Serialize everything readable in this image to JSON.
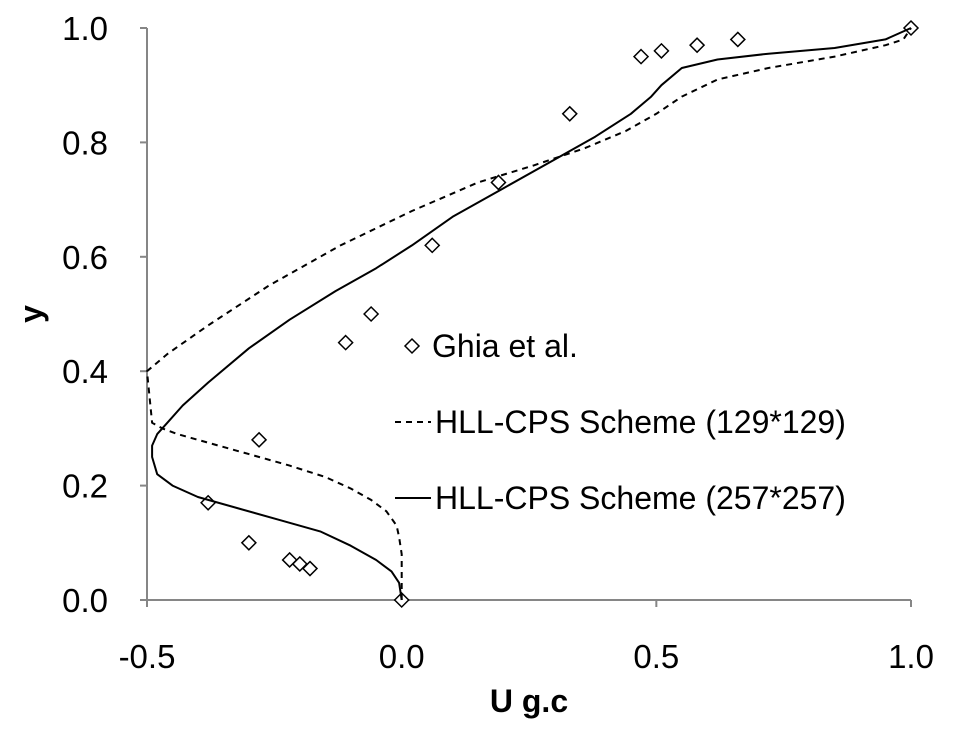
{
  "chart_data": {
    "type": "line",
    "xlabel": "U g.c",
    "ylabel": "y",
    "xlim": [
      -0.5,
      1.0
    ],
    "ylim": [
      0.0,
      1.0
    ],
    "x_ticks": [
      "-0.5",
      "0.0",
      "0.5",
      "1.0"
    ],
    "y_ticks": [
      "0.0",
      "0.2",
      "0.4",
      "0.6",
      "0.8",
      "1.0"
    ],
    "grid": false,
    "legend_position": "center-right",
    "series": [
      {
        "name": "Ghia et al.",
        "style": "markers",
        "marker": "open-diamond",
        "x": [
          0.0,
          -0.18,
          -0.2,
          -0.22,
          -0.3,
          -0.38,
          -0.28,
          -0.11,
          -0.06,
          0.06,
          0.19,
          0.33,
          0.47,
          0.51,
          0.58,
          0.66,
          1.0
        ],
        "y": [
          0.0,
          0.055,
          0.063,
          0.07,
          0.1,
          0.17,
          0.28,
          0.45,
          0.5,
          0.62,
          0.73,
          0.85,
          0.95,
          0.96,
          0.97,
          0.98,
          1.0
        ]
      },
      {
        "name": "HLL-CPS Scheme (129*129)",
        "style": "dashed",
        "x": [
          0.0,
          0.0,
          -0.005,
          -0.01,
          -0.03,
          -0.06,
          -0.1,
          -0.15,
          -0.22,
          -0.3,
          -0.38,
          -0.44,
          -0.47,
          -0.49,
          -0.5,
          -0.46,
          -0.38,
          -0.26,
          -0.12,
          0.02,
          0.15,
          0.26,
          0.36,
          0.44,
          0.5,
          0.55,
          0.62,
          0.72,
          0.85,
          0.95,
          0.985,
          1.0
        ],
        "y": [
          0.0,
          0.08,
          0.11,
          0.13,
          0.155,
          0.175,
          0.195,
          0.215,
          0.235,
          0.255,
          0.275,
          0.29,
          0.3,
          0.31,
          0.4,
          0.43,
          0.48,
          0.55,
          0.62,
          0.68,
          0.73,
          0.76,
          0.79,
          0.82,
          0.85,
          0.88,
          0.91,
          0.93,
          0.95,
          0.97,
          0.98,
          1.0
        ]
      },
      {
        "name": "HLL-CPS Scheme (257*257)",
        "style": "solid",
        "x": [
          0.0,
          -0.005,
          -0.02,
          -0.05,
          -0.1,
          -0.16,
          -0.24,
          -0.32,
          -0.4,
          -0.45,
          -0.48,
          -0.49,
          -0.49,
          -0.48,
          -0.46,
          -0.43,
          -0.38,
          -0.3,
          -0.22,
          -0.13,
          -0.05,
          0.02,
          0.1,
          0.2,
          0.3,
          0.38,
          0.45,
          0.49,
          0.51,
          0.55,
          0.62,
          0.72,
          0.85,
          0.95,
          1.0
        ],
        "y": [
          0.0,
          0.03,
          0.05,
          0.07,
          0.095,
          0.12,
          0.14,
          0.16,
          0.18,
          0.2,
          0.22,
          0.25,
          0.27,
          0.29,
          0.31,
          0.34,
          0.38,
          0.44,
          0.49,
          0.54,
          0.58,
          0.62,
          0.67,
          0.72,
          0.77,
          0.81,
          0.85,
          0.88,
          0.9,
          0.93,
          0.945,
          0.955,
          0.965,
          0.98,
          1.0
        ]
      }
    ]
  }
}
